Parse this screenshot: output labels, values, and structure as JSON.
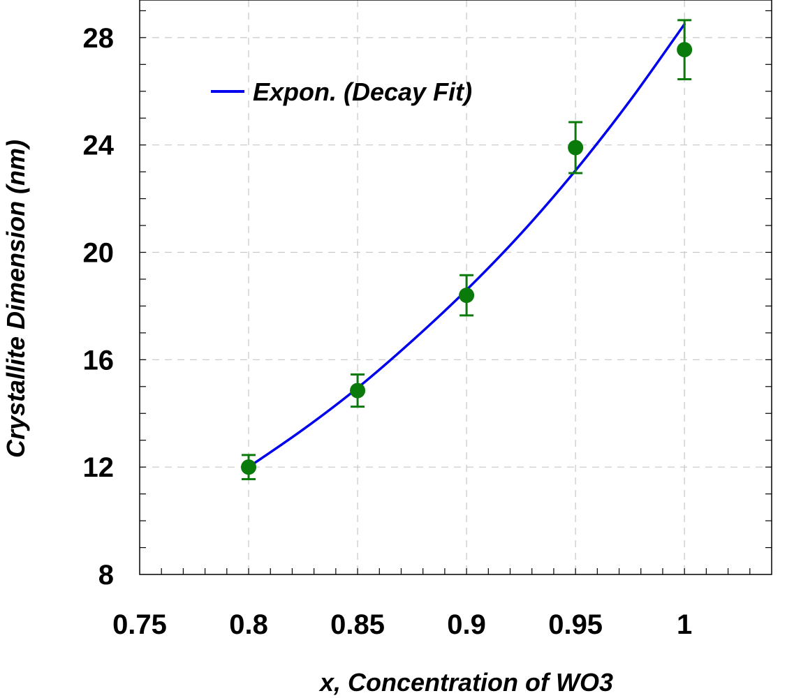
{
  "chart_data": {
    "type": "scatter",
    "title": "",
    "xlabel": "x, Concentration of WO3",
    "ylabel": "Crystallite Dimension (nm)",
    "xlim": [
      0.75,
      1.04
    ],
    "ylim": [
      8,
      29.4
    ],
    "xticks": [
      0.75,
      0.8,
      0.85,
      0.9,
      0.95,
      1
    ],
    "xtick_labels": [
      "0.75",
      "0.8",
      "0.85",
      "0.9",
      "0.95",
      "1"
    ],
    "yticks": [
      8,
      12,
      16,
      20,
      24,
      28
    ],
    "ytick_labels": [
      "8",
      "12",
      "16",
      "20",
      "24",
      "28"
    ],
    "grid": true,
    "legend_position": "top-left",
    "series": [
      {
        "kind": "points-with-error-bars",
        "color": "#0a7a0a",
        "x": [
          0.8,
          0.85,
          0.9,
          0.95,
          1
        ],
        "y": [
          12.0,
          14.85,
          18.4,
          23.9,
          27.55
        ],
        "error": [
          0.45,
          0.6,
          0.75,
          0.95,
          1.1
        ]
      },
      {
        "name": "Expon. (Decay Fit)",
        "kind": "fit-line",
        "color": "#0000ee",
        "x": [
          0.8,
          0.825,
          0.85,
          0.875,
          0.9,
          0.925,
          0.95,
          0.975,
          1
        ],
        "y": [
          12.0,
          13.4,
          14.95,
          16.7,
          18.6,
          20.7,
          23.05,
          25.65,
          28.5
        ]
      }
    ]
  }
}
